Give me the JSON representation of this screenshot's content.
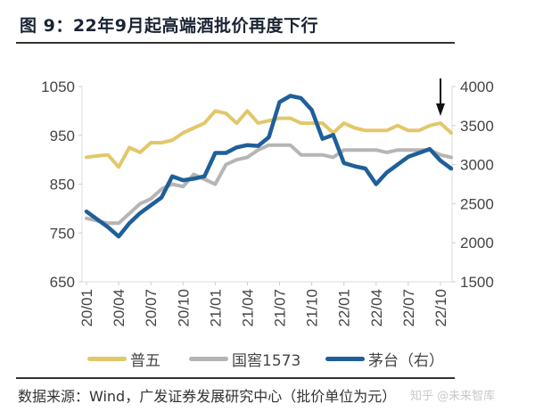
{
  "title": "图 9：22年9月起高端酒批价再度下行",
  "source": "数据来源：Wind，广发证券发展研究中心（批价单位为元）",
  "watermark": "知乎 @未来智库",
  "chart_data": {
    "type": "line",
    "title": "",
    "x": [
      "20/01",
      "20/02",
      "20/03",
      "20/04",
      "20/05",
      "20/06",
      "20/07",
      "20/08",
      "20/09",
      "20/10",
      "20/11",
      "20/12",
      "21/01",
      "21/02",
      "21/03",
      "21/04",
      "21/05",
      "21/06",
      "21/07",
      "21/08",
      "21/09",
      "21/10",
      "21/11",
      "21/12",
      "22/01",
      "22/02",
      "22/03",
      "22/04",
      "22/05",
      "22/06",
      "22/07",
      "22/08",
      "22/09",
      "22/10",
      "22/11"
    ],
    "x_ticks": [
      "20/01",
      "20/04",
      "20/07",
      "20/10",
      "21/01",
      "21/04",
      "21/07",
      "21/10",
      "22/01",
      "22/04",
      "22/07",
      "22/10"
    ],
    "y_left": {
      "range": [
        650,
        1050
      ],
      "ticks": [
        650,
        750,
        850,
        950,
        1050
      ]
    },
    "y_right": {
      "range": [
        1500,
        4000
      ],
      "ticks": [
        1500,
        2000,
        2500,
        3000,
        3500,
        4000
      ]
    },
    "grid": false,
    "legend_position": "bottom",
    "series": [
      {
        "name": "普五",
        "axis": "left",
        "color": "#e2c76a",
        "values": [
          905,
          908,
          910,
          885,
          925,
          915,
          935,
          935,
          940,
          955,
          965,
          975,
          1000,
          995,
          975,
          1000,
          975,
          980,
          985,
          985,
          975,
          975,
          975,
          955,
          975,
          965,
          960,
          960,
          960,
          970,
          960,
          960,
          970,
          975,
          955
        ]
      },
      {
        "name": "国窖1573",
        "axis": "left",
        "color": "#b5b5b5",
        "values": [
          780,
          775,
          770,
          770,
          790,
          810,
          820,
          840,
          850,
          845,
          870,
          860,
          850,
          890,
          900,
          905,
          920,
          930,
          930,
          930,
          910,
          910,
          910,
          905,
          920,
          920,
          920,
          920,
          915,
          920,
          920,
          920,
          920,
          910,
          905
        ]
      },
      {
        "name": "茅台（右）",
        "axis": "right",
        "color": "#1f5f99",
        "values": [
          2400,
          2300,
          2200,
          2080,
          2250,
          2380,
          2480,
          2580,
          2850,
          2800,
          2820,
          2850,
          3150,
          3150,
          3220,
          3250,
          3240,
          3350,
          3800,
          3880,
          3850,
          3700,
          3330,
          3380,
          3020,
          2980,
          2950,
          2750,
          2900,
          3000,
          3100,
          3150,
          3200,
          3050,
          2950
        ]
      }
    ],
    "annotations": [
      {
        "type": "arrow-down",
        "at": "22/10"
      }
    ]
  }
}
